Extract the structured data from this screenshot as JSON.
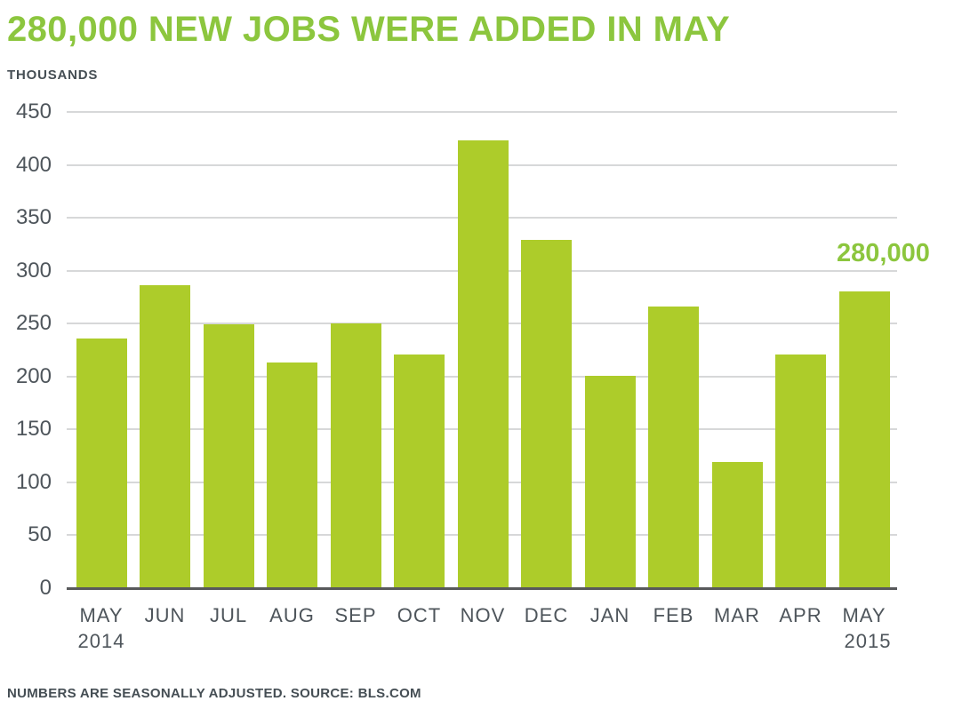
{
  "title": "280,000 NEW JOBS WERE ADDED IN MAY",
  "units_label": "THOUSANDS",
  "annotation_label": "280,000",
  "footer_note": "NUMBERS ARE SEASONALLY ADJUSTED. SOURCE: BLS.COM",
  "colors": {
    "accent_green": "#8CC63E",
    "bar_green": "#ADCC2A",
    "gridline_gray": "#D7D8D9",
    "axis_gray": "#58595B",
    "tick_label_gray": "#4E555B",
    "dark_text_gray": "#454E54",
    "background": "#FFFFFF"
  },
  "chart_data": {
    "type": "bar",
    "title": "280,000 NEW JOBS WERE ADDED IN MAY",
    "ylabel": "THOUSANDS",
    "unit": "thousands of jobs",
    "categories": [
      "MAY",
      "JUN",
      "JUL",
      "AUG",
      "SEP",
      "OCT",
      "NOV",
      "DEC",
      "JAN",
      "FEB",
      "MAR",
      "APR",
      "MAY"
    ],
    "category_years": [
      {
        "index": 0,
        "label": "2014"
      },
      {
        "index": 12,
        "label": "2015"
      }
    ],
    "values": [
      236,
      286,
      249,
      213,
      250,
      221,
      423,
      329,
      201,
      266,
      119,
      221,
      280
    ],
    "ylim": [
      0,
      450
    ],
    "yticks": [
      450,
      400,
      350,
      300,
      250,
      200,
      150,
      100,
      50,
      0
    ],
    "grid": "horizontal",
    "legend": "none",
    "annotation": {
      "text": "280,000",
      "target_category_index": 12
    }
  }
}
